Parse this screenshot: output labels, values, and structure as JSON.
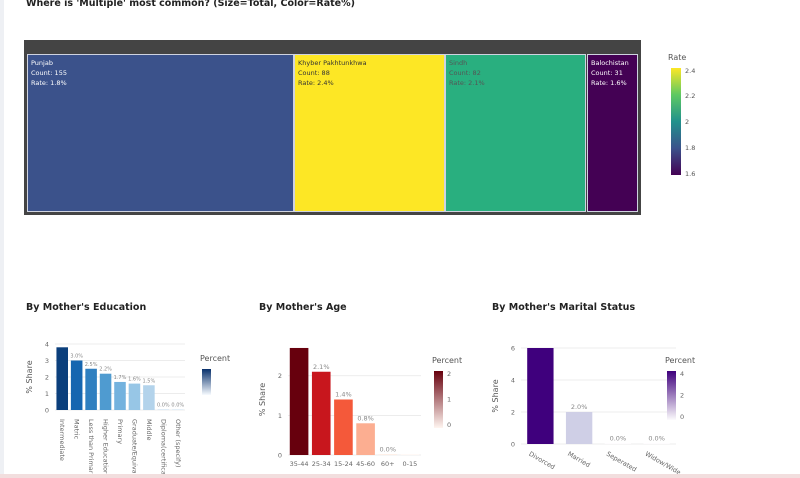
{
  "page_title": "Where is 'Multiple' most common? (Size=Total, Color=Rate%)",
  "treemap": {
    "colorbar_title": "Rate",
    "colorbar_ticks": [
      "2.4",
      "2.2",
      "2",
      "1.8",
      "1.6"
    ],
    "tiles": [
      {
        "name": "Punjab",
        "count": "Count: 155",
        "rate": "Rate: 1.8%",
        "color": "#3b528b",
        "text_color": "#ffffff"
      },
      {
        "name": "Khyber Pakhtunkhwa",
        "count": "Count: 88",
        "rate": "Rate: 2.4%",
        "color": "#fde725",
        "text_color": "#333333"
      },
      {
        "name": "Sindh",
        "count": "Count: 82",
        "rate": "Rate: 2.1%",
        "color": "#29af7f",
        "text_color": "#555555"
      },
      {
        "name": "Balochistan",
        "count": "Count: 31",
        "rate": "Rate: 1.6%",
        "color": "#440154",
        "text_color": "#ffffff"
      }
    ]
  },
  "chart_data": [
    {
      "type": "treemap",
      "title": "Where is 'Multiple' most common? (Size=Total, Color=Rate%)",
      "labels": [
        "Punjab",
        "Khyber Pakhtunkhwa",
        "Sindh",
        "Balochistan"
      ],
      "values": [
        155,
        88,
        82,
        31
      ],
      "rates": [
        1.8,
        2.4,
        2.1,
        1.6
      ],
      "colorbar": {
        "title": "Rate",
        "range": [
          1.6,
          2.4
        ]
      }
    },
    {
      "type": "bar",
      "title": "By Mother's Education",
      "categories": [
        "Intermediate",
        "Matric",
        "Less than Primar",
        "Higher Educatior",
        "Primary",
        "Graduate/Equiva",
        "Middle",
        "Diploma(certifica",
        "Other (specify)"
      ],
      "values": [
        3.8,
        3.0,
        2.5,
        2.2,
        1.7,
        1.6,
        1.5,
        0.0,
        0.0
      ],
      "data_labels": [
        "",
        "3.0%",
        "2.5%",
        "2.2%",
        "1.7%",
        "1.6%",
        "1.5%",
        "0.0%",
        "0.0%"
      ],
      "colors": [
        "#0b3f7c",
        "#1666b0",
        "#2f7fc0",
        "#4f9bd0",
        "#73b2de",
        "#97c6e6",
        "#b3d3eb",
        "#ccdff0",
        "#d6e6f4"
      ],
      "ylabel": "% Share",
      "yticks": [
        "0",
        "1",
        "2",
        "3",
        "4"
      ],
      "ylim": [
        0,
        4
      ],
      "colorbar": {
        "title": "Percent"
      }
    },
    {
      "type": "bar",
      "title": "By Mother's Age",
      "categories": [
        "35-44",
        "25-34",
        "15-24",
        "45-60",
        "60+",
        "0-15"
      ],
      "values": [
        2.7,
        2.1,
        1.4,
        0.8,
        0.0,
        0.0
      ],
      "data_labels": [
        "",
        "2.1%",
        "1.4%",
        "0.8%",
        "0.0%",
        ""
      ],
      "colors": [
        "#67000d",
        "#c8161d",
        "#f4593a",
        "#fcae91",
        "#fee5d9",
        "#fff5f0"
      ],
      "ylabel": "% Share",
      "yticks": [
        "0",
        "1",
        "2"
      ],
      "ylim": [
        0,
        2.8
      ],
      "colorbar": {
        "title": "Percent",
        "ticks": [
          "2",
          "1",
          "0"
        ]
      }
    },
    {
      "type": "bar",
      "title": "By Mother's Marital Status",
      "categories": [
        "Divorced",
        "Married",
        "Seperated",
        "Widow/Wide"
      ],
      "values": [
        6.0,
        2.0,
        0.0,
        0.0
      ],
      "data_labels": [
        "",
        "2.0%",
        "0.0%",
        "0.0%"
      ],
      "colors": [
        "#3f007d",
        "#cfcfe6",
        "#fcfbfd",
        "#fcfbfd"
      ],
      "ylabel": "% Share",
      "yticks": [
        "0",
        "2",
        "4",
        "6"
      ],
      "ylim": [
        0,
        6
      ],
      "colorbar": {
        "title": "Percent",
        "ticks": [
          "4",
          "2",
          "0"
        ]
      }
    }
  ]
}
